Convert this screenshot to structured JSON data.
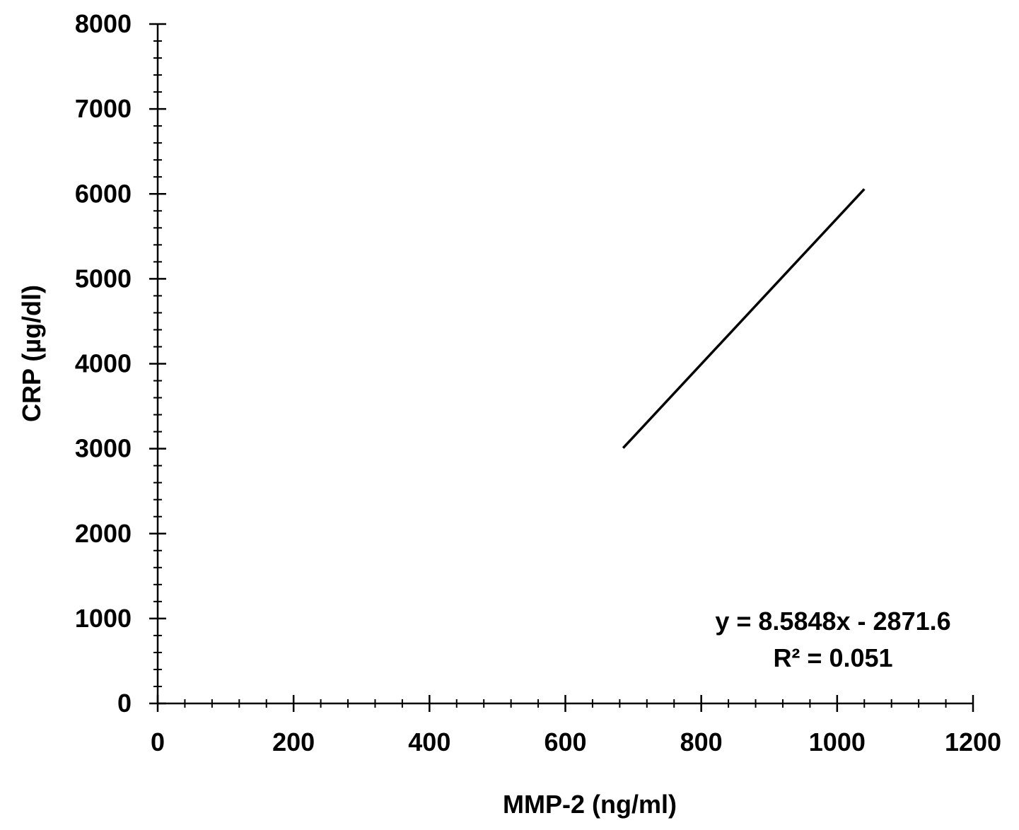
{
  "chart_data": {
    "type": "line",
    "title": "",
    "xlabel": "MMP-2 (ng/ml)",
    "ylabel": "CRP (µg/dl)",
    "xlim": [
      0,
      1200
    ],
    "ylim": [
      0,
      8000
    ],
    "x_ticks": [
      0,
      200,
      400,
      600,
      800,
      1000,
      1200
    ],
    "x_tick_labels": [
      "0",
      "200",
      "400",
      "600",
      "800",
      "1000",
      "1200"
    ],
    "y_ticks": [
      0,
      1000,
      2000,
      3000,
      4000,
      5000,
      6000,
      7000,
      8000
    ],
    "y_tick_labels": [
      "0",
      "1000",
      "2000",
      "3000",
      "4000",
      "5000",
      "6000",
      "7000",
      "8000"
    ],
    "x_minor_step": 40,
    "y_minor_step": 200,
    "grid": false,
    "legend": "none",
    "series": [
      {
        "color": "#000000",
        "x": [
          685,
          1040
        ],
        "y": [
          3008,
          6057
        ]
      }
    ],
    "annotations": [
      {
        "text": "y = 8.5848x - 2871.6"
      },
      {
        "text": "R² = 0.051"
      }
    ]
  }
}
